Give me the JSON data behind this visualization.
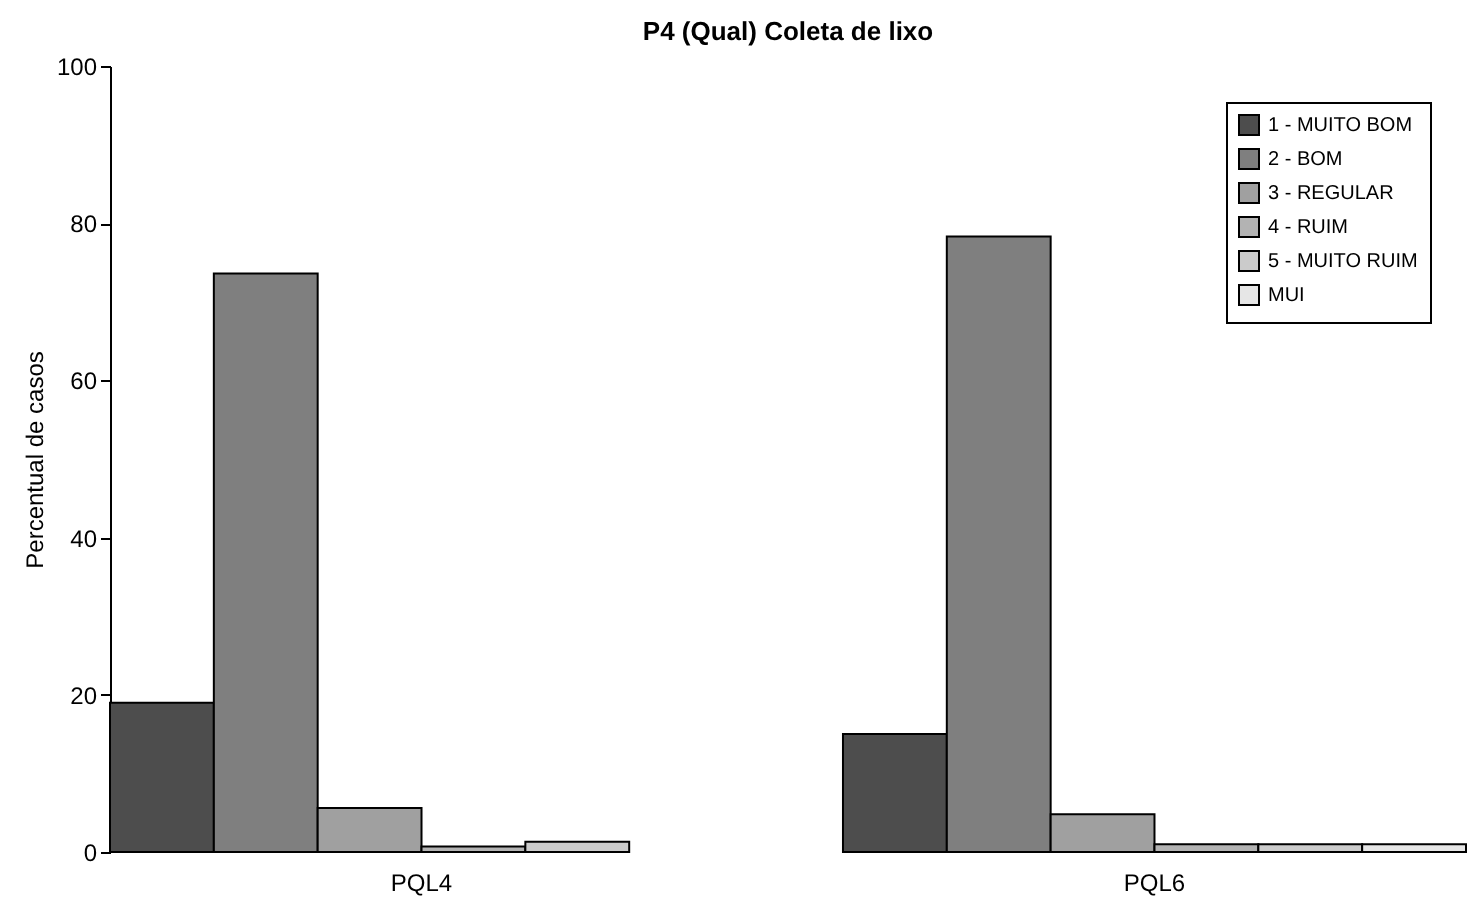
{
  "chart_data": {
    "type": "bar",
    "title": "P4 (Qual) Coleta de lixo",
    "ylabel": "Percentual de casos",
    "categories": [
      "PQL4",
      "PQL6"
    ],
    "series": [
      {
        "name": "1 - MUITO BOM",
        "color": "#4d4d4d",
        "values": [
          19.0,
          15.0
        ]
      },
      {
        "name": "2 - BOM",
        "color": "#7f7f7f",
        "values": [
          73.6,
          78.3
        ]
      },
      {
        "name": "3 - REGULAR",
        "color": "#a0a0a0",
        "values": [
          5.6,
          4.8
        ]
      },
      {
        "name": "4 - RUIM",
        "color": "#b3b3b3",
        "values": [
          0.7,
          1.0
        ]
      },
      {
        "name": "5 - MUITO RUIM",
        "color": "#cbcbcb",
        "values": [
          1.3,
          1.0
        ]
      },
      {
        "name": "MUI",
        "color": "#e6e6e6",
        "values": [
          null,
          1.0
        ]
      }
    ],
    "ylim": [
      0,
      100
    ],
    "yticks": [
      0,
      20,
      40,
      60,
      80,
      100
    ],
    "grid": false,
    "legend": "top right"
  }
}
